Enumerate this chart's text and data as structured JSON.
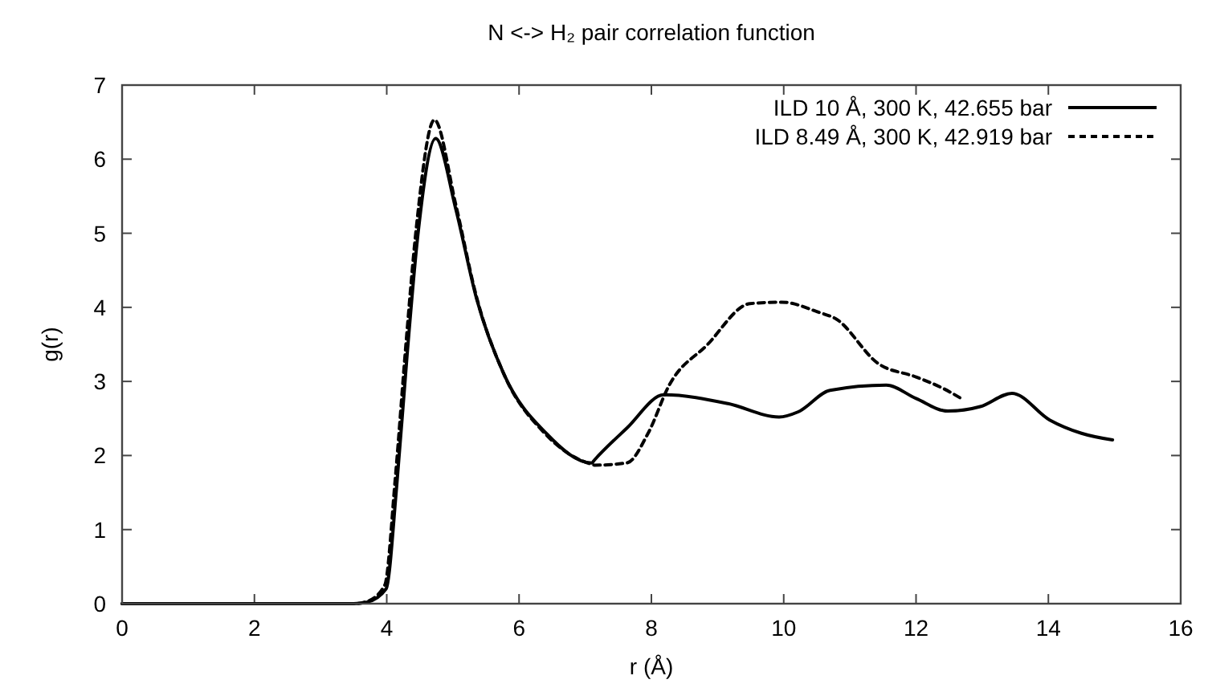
{
  "chart_data": {
    "type": "line",
    "title": "N <-> H₂ pair correlation function",
    "xlabel": "r (Å)",
    "ylabel": "g(r)",
    "xlim": [
      0,
      16
    ],
    "xticks": [
      0,
      2,
      4,
      6,
      8,
      10,
      12,
      14,
      16
    ],
    "ylim": [
      0,
      7
    ],
    "yticks": [
      0,
      1,
      2,
      3,
      4,
      5,
      6,
      7
    ],
    "legend": "top right",
    "series": [
      {
        "name": "ILD 10 Å, 300 K, 42.655 bar",
        "color": "#000000",
        "line_style": "solid",
        "x": [
          0,
          3.5,
          3.7,
          3.99,
          4.15,
          4.31,
          4.47,
          4.74,
          5.04,
          5.36,
          5.77,
          6.41,
          7.1,
          7.14,
          7.63,
          8.19,
          9.16,
          9.93,
          10.22,
          10.7,
          11.55,
          12.0,
          12.48,
          12.97,
          13.45,
          14.02,
          14.5,
          14.97
        ],
        "values": [
          0,
          0,
          0.02,
          0.2,
          1.58,
          3.38,
          4.97,
          6.28,
          5.34,
          4.11,
          3.1,
          2.3,
          1.9,
          1.94,
          2.37,
          2.82,
          2.7,
          2.52,
          2.59,
          2.88,
          2.95,
          2.77,
          2.6,
          2.66,
          2.84,
          2.48,
          2.3,
          2.21
        ]
      },
      {
        "name": "ILD 8.49 Å, 300 K, 42.919 bar",
        "color": "#000000",
        "line_style": "dashed",
        "x": [
          0,
          3.5,
          3.7,
          3.97,
          4.13,
          4.29,
          4.45,
          4.72,
          5.04,
          5.36,
          5.77,
          6.41,
          7.1,
          7.14,
          7.63,
          7.95,
          8.27,
          8.84,
          9.49,
          9.97,
          10.54,
          10.78,
          11.43,
          12.0,
          12.4,
          12.72
        ],
        "values": [
          0,
          0,
          0.03,
          0.25,
          1.7,
          3.5,
          5.1,
          6.53,
          5.4,
          4.13,
          3.1,
          2.28,
          1.88,
          1.87,
          1.9,
          2.3,
          2.95,
          3.49,
          4.05,
          4.07,
          3.93,
          3.85,
          3.24,
          3.06,
          2.91,
          2.75
        ]
      }
    ]
  }
}
